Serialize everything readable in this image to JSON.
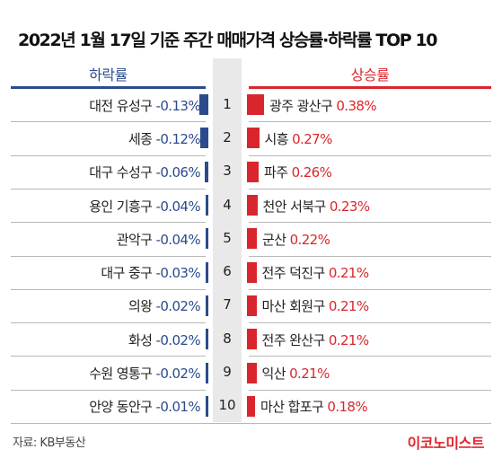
{
  "title": "2022년 1월 17일 기준 주간 매매가격 상승률·하락률 TOP 10",
  "source": "자료: KB부동산",
  "logo": "이코노미스트",
  "colors": {
    "decline": "#2b4b8c",
    "rise": "#d9262c"
  },
  "chart_data": {
    "type": "bar",
    "unit": "%",
    "series": [
      {
        "name": "하락률",
        "color": "#2b4b8c",
        "items": [
          {
            "rank": "1",
            "region": "대전 유성구",
            "value": -0.13,
            "label": "-0.13%"
          },
          {
            "rank": "2",
            "region": "세종",
            "value": -0.12,
            "label": "-0.12%"
          },
          {
            "rank": "3",
            "region": "대구 수성구",
            "value": -0.06,
            "label": "-0.06%"
          },
          {
            "rank": "4",
            "region": "용인 기흥구",
            "value": -0.04,
            "label": "-0.04%"
          },
          {
            "rank": "5",
            "region": "관악구",
            "value": -0.04,
            "label": "-0.04%"
          },
          {
            "rank": "6",
            "region": "대구 중구",
            "value": -0.03,
            "label": "-0.03%"
          },
          {
            "rank": "7",
            "region": "의왕",
            "value": -0.02,
            "label": "-0.02%"
          },
          {
            "rank": "8",
            "region": "화성",
            "value": -0.02,
            "label": "-0.02%"
          },
          {
            "rank": "9",
            "region": "수원 영통구",
            "value": -0.02,
            "label": "-0.02%"
          },
          {
            "rank": "10",
            "region": "안양 동안구",
            "value": -0.01,
            "label": "-0.01%"
          }
        ]
      },
      {
        "name": "상승률",
        "color": "#d9262c",
        "items": [
          {
            "rank": "1",
            "region": "광주 광산구",
            "value": 0.38,
            "label": "0.38%"
          },
          {
            "rank": "2",
            "region": "시흥",
            "value": 0.27,
            "label": "0.27%"
          },
          {
            "rank": "3",
            "region": "파주",
            "value": 0.26,
            "label": "0.26%"
          },
          {
            "rank": "4",
            "region": "천안 서북구",
            "value": 0.23,
            "label": "0.23%"
          },
          {
            "rank": "5",
            "region": "군산",
            "value": 0.22,
            "label": "0.22%"
          },
          {
            "rank": "6",
            "region": "전주 덕진구",
            "value": 0.21,
            "label": "0.21%"
          },
          {
            "rank": "7",
            "region": "마산 회원구",
            "value": 0.21,
            "label": "0.21%"
          },
          {
            "rank": "8",
            "region": "전주 완산구",
            "value": 0.21,
            "label": "0.21%"
          },
          {
            "rank": "9",
            "region": "익산",
            "value": 0.21,
            "label": "0.21%"
          },
          {
            "rank": "10",
            "region": "마산 합포구",
            "value": 0.18,
            "label": "0.18%"
          }
        ]
      }
    ]
  }
}
